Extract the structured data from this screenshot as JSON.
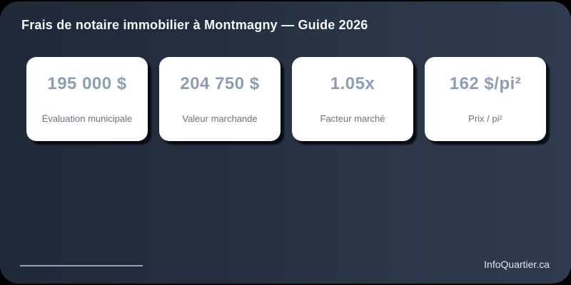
{
  "title": "Frais de notaire immobilier à Montmagny — Guide 2026",
  "stats": [
    {
      "value": "195 000 $",
      "label": "Évaluation municipale"
    },
    {
      "value": "204 750 $",
      "label": "Valeur marchande"
    },
    {
      "value": "1.05x",
      "label": "Facteur marché"
    },
    {
      "value": "162 $/pi²",
      "label": "Prix / pi²"
    }
  ],
  "footer": {
    "brand": "InfoQuartier.ca"
  },
  "colors": {
    "outside": "#000000",
    "panel_gradient_left": "#202938",
    "panel_gradient_right": "#2f3b4e",
    "card_background": "#ffffff",
    "stat_value": "#8c9eb7",
    "stat_label": "#6d737d",
    "title_text": "#f5f8fb",
    "divider_line": "#94a2b6",
    "brand_text": "#dfe5ec"
  }
}
